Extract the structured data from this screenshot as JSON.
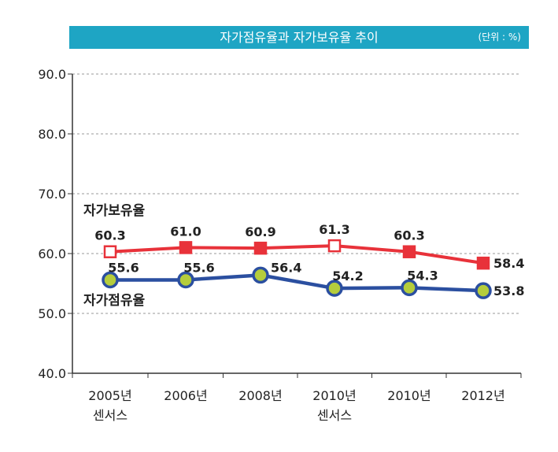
{
  "chart_data": {
    "type": "line",
    "title": "자가점유율과 자가보유율 추이",
    "unit": "(단위 : %)",
    "categories": [
      [
        "2005년",
        "센서스"
      ],
      [
        "2006년"
      ],
      [
        "2008년"
      ],
      [
        "2010년",
        "센서스"
      ],
      [
        "2010년"
      ],
      [
        "2012년"
      ]
    ],
    "ylim": [
      40,
      90
    ],
    "yticks": [
      "40.0",
      "50.0",
      "60.0",
      "70.0",
      "80.0",
      "90.0"
    ],
    "grid": "horizontal dashed",
    "series": [
      {
        "name": "자가보유율",
        "color": "#e8323a",
        "values": [
          60.3,
          61.0,
          60.9,
          61.3,
          60.3,
          58.4
        ],
        "labels": [
          "60.3",
          "61.0",
          "60.9",
          "61.3",
          "60.3",
          "58.4"
        ],
        "markers": [
          "hollow-square",
          "square",
          "square",
          "hollow-square",
          "square",
          "square"
        ]
      },
      {
        "name": "자가점유율",
        "color": "#2b4fa0",
        "marker_fill": "#b5cd3c",
        "values": [
          55.6,
          55.6,
          56.4,
          54.2,
          54.3,
          53.8
        ],
        "labels": [
          "55.6",
          "55.6",
          "56.4",
          "54.2",
          "54.3",
          "53.8"
        ],
        "markers": [
          "circle",
          "circle",
          "circle",
          "circle",
          "circle",
          "circle"
        ]
      }
    ]
  }
}
